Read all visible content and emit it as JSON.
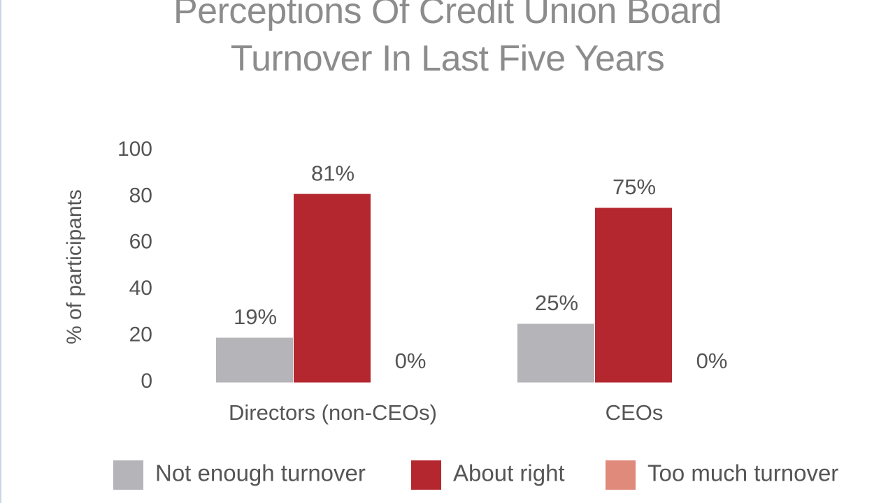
{
  "chart_data": {
    "type": "bar",
    "title": "Perceptions Of Credit Union Board Turnover In Last Five Years",
    "y_label": "% of participants",
    "categories": [
      "Directors (non-CEOs)",
      "CEOs"
    ],
    "series": [
      {
        "name": "Not enough turnover",
        "color": "#b4b4b9",
        "values": [
          19,
          25
        ],
        "value_labels": [
          "19%",
          "25%"
        ]
      },
      {
        "name": "About right",
        "color": "#b5272f",
        "values": [
          81,
          75
        ],
        "value_labels": [
          "81%",
          "75%"
        ]
      },
      {
        "name": "Too much turnover",
        "color": "#e08a7c",
        "values": [
          0,
          0
        ],
        "value_labels": [
          "0%",
          "0%"
        ]
      }
    ],
    "ylim": [
      0,
      100
    ],
    "yticks": [
      0,
      20,
      40,
      60,
      80,
      100
    ],
    "grid": false,
    "legend": "bottom"
  }
}
